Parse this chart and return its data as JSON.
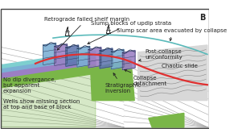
{
  "title": "B",
  "border_color": "#444444",
  "bg_color": "#ffffff",
  "colors": {
    "light_blue_band": "#7ecfcf",
    "blue_band": "#7bafd4",
    "purple_band": "#9b7fc4",
    "green_band": "#7ab648",
    "slump_blue": "#7bafd4",
    "slump_purple": "#9b7fc4",
    "slump_dark": "#6077b0",
    "red_line": "#e03030",
    "teal_arc": "#5ababa",
    "green_wedge": "#7ab648",
    "chaotic_fill": "#d8d8d8",
    "gray_line": "#aaaaaa",
    "dark_gray": "#666666",
    "black": "#222222"
  },
  "labels": {
    "retrograde": "Retrograde failed shelf margin",
    "slump_blocks": "Slump blocks of updip strata",
    "slump_scar": "Slump scar area evacuated by collapse",
    "post_collapse": "Post-collapse\nunconformity",
    "no_dip": "No dip divergance,\nbut apparent\nexpansion",
    "wells_show": "Wells show missing section\nat top and base of block",
    "collapse_detach": "Collapse\ndetachment",
    "stratigraphic": "Stratigraphic\ninversion",
    "chaotic_slide": "Chaotic slide"
  }
}
